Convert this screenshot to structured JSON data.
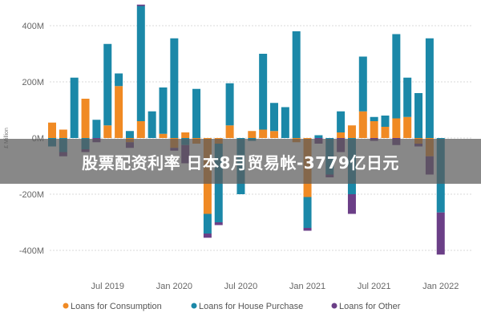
{
  "overlay": {
    "headline": "股票配资利率 日本8月贸易帐-3779亿日元"
  },
  "chart_data": {
    "type": "bar",
    "stacked": true,
    "ylabel": "£ Million",
    "ylim": [
      -450,
      480
    ],
    "yticks": [
      {
        "value": 400,
        "label": "400M"
      },
      {
        "value": 200,
        "label": "200M"
      },
      {
        "value": 0,
        "label": "0M"
      },
      {
        "value": -200,
        "label": "-200M"
      },
      {
        "value": -400,
        "label": "-400M"
      }
    ],
    "xticks": [
      {
        "index": 5,
        "label": "Jul 2019"
      },
      {
        "index": 11,
        "label": "Jan 2020"
      },
      {
        "index": 17,
        "label": "Jul 2020"
      },
      {
        "index": 23,
        "label": "Jan 2021"
      },
      {
        "index": 29,
        "label": "Jul 2021"
      },
      {
        "index": 35,
        "label": "Jan 2022"
      }
    ],
    "legend_position": "bottom",
    "series": [
      {
        "name": "Loans for Consumption",
        "color": "#F08A24",
        "values": [
          55,
          30,
          0,
          140,
          0,
          45,
          185,
          -15,
          60,
          0,
          15,
          -35,
          20,
          -20,
          -270,
          -20,
          45,
          0,
          25,
          30,
          25,
          0,
          -15,
          -210,
          0,
          0,
          20,
          45,
          95,
          60,
          40,
          70,
          75,
          -20,
          -65,
          0
        ]
      },
      {
        "name": "Loans for House Purchase",
        "color": "#1B88A8",
        "values": [
          -30,
          -50,
          215,
          -40,
          65,
          290,
          45,
          25,
          410,
          95,
          165,
          355,
          -25,
          175,
          -70,
          -280,
          150,
          -200,
          -10,
          270,
          100,
          110,
          380,
          -110,
          10,
          -130,
          75,
          -200,
          195,
          15,
          40,
          300,
          140,
          160,
          355,
          -265
        ]
      },
      {
        "name": "Loans for Other",
        "color": "#6B3F87",
        "values": [
          0,
          -15,
          0,
          -10,
          -15,
          0,
          0,
          -20,
          5,
          0,
          0,
          -10,
          -65,
          0,
          -15,
          -10,
          0,
          0,
          0,
          0,
          0,
          0,
          0,
          -10,
          -20,
          -10,
          -50,
          -70,
          0,
          -10,
          0,
          -25,
          0,
          -10,
          -65,
          -150
        ]
      }
    ]
  }
}
